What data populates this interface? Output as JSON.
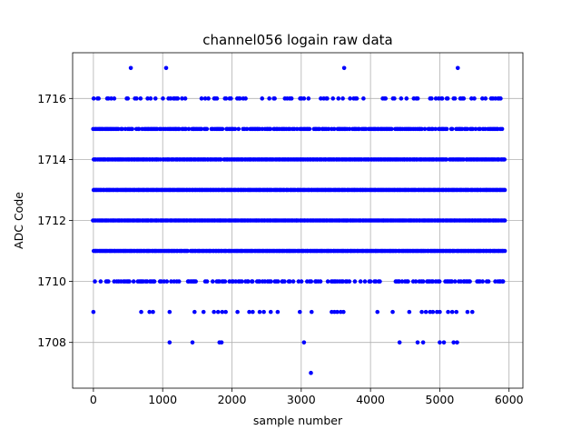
{
  "chart_data": {
    "type": "scatter",
    "title": "channel056 logain raw data",
    "xlabel": "sample number",
    "ylabel": "ADC Code",
    "xlim": [
      -300,
      6200
    ],
    "ylim": [
      1706.5,
      1717.5
    ],
    "xticks": [
      0,
      1000,
      2000,
      3000,
      4000,
      5000,
      6000
    ],
    "yticks": [
      1708,
      1710,
      1712,
      1714,
      1716
    ],
    "grid": true,
    "sample_count": 5950,
    "marker_color": "#0000ff",
    "dense_levels": [
      1710,
      1711,
      1712,
      1713,
      1714,
      1715,
      1716
    ],
    "sparse_points": [
      {
        "x": 540,
        "y": 1717
      },
      {
        "x": 1050,
        "y": 1717
      },
      {
        "x": 3620,
        "y": 1717
      },
      {
        "x": 5260,
        "y": 1717
      },
      {
        "x": 0,
        "y": 1709
      },
      {
        "x": 690,
        "y": 1709
      },
      {
        "x": 810,
        "y": 1709
      },
      {
        "x": 860,
        "y": 1709
      },
      {
        "x": 1100,
        "y": 1709
      },
      {
        "x": 1460,
        "y": 1709
      },
      {
        "x": 1590,
        "y": 1709
      },
      {
        "x": 1740,
        "y": 1709
      },
      {
        "x": 1800,
        "y": 1709
      },
      {
        "x": 1860,
        "y": 1709
      },
      {
        "x": 1910,
        "y": 1709
      },
      {
        "x": 2080,
        "y": 1709
      },
      {
        "x": 2250,
        "y": 1709
      },
      {
        "x": 2300,
        "y": 1709
      },
      {
        "x": 2400,
        "y": 1709
      },
      {
        "x": 2460,
        "y": 1709
      },
      {
        "x": 2560,
        "y": 1709
      },
      {
        "x": 2660,
        "y": 1709
      },
      {
        "x": 2980,
        "y": 1709
      },
      {
        "x": 3150,
        "y": 1709
      },
      {
        "x": 3440,
        "y": 1709
      },
      {
        "x": 3480,
        "y": 1709
      },
      {
        "x": 3520,
        "y": 1709
      },
      {
        "x": 3570,
        "y": 1709
      },
      {
        "x": 3610,
        "y": 1709
      },
      {
        "x": 4100,
        "y": 1709
      },
      {
        "x": 4320,
        "y": 1709
      },
      {
        "x": 4560,
        "y": 1709
      },
      {
        "x": 4740,
        "y": 1709
      },
      {
        "x": 4800,
        "y": 1709
      },
      {
        "x": 4860,
        "y": 1709
      },
      {
        "x": 4900,
        "y": 1709
      },
      {
        "x": 4960,
        "y": 1709
      },
      {
        "x": 5000,
        "y": 1709
      },
      {
        "x": 5120,
        "y": 1709
      },
      {
        "x": 5180,
        "y": 1709
      },
      {
        "x": 5240,
        "y": 1709
      },
      {
        "x": 5400,
        "y": 1709
      },
      {
        "x": 5470,
        "y": 1709
      },
      {
        "x": 1100,
        "y": 1708
      },
      {
        "x": 1430,
        "y": 1708
      },
      {
        "x": 1820,
        "y": 1708
      },
      {
        "x": 1850,
        "y": 1708
      },
      {
        "x": 3040,
        "y": 1708
      },
      {
        "x": 4420,
        "y": 1708
      },
      {
        "x": 4680,
        "y": 1708
      },
      {
        "x": 4760,
        "y": 1708
      },
      {
        "x": 5000,
        "y": 1708
      },
      {
        "x": 5060,
        "y": 1708
      },
      {
        "x": 5200,
        "y": 1708
      },
      {
        "x": 5250,
        "y": 1708
      },
      {
        "x": 3140,
        "y": 1707
      }
    ]
  }
}
